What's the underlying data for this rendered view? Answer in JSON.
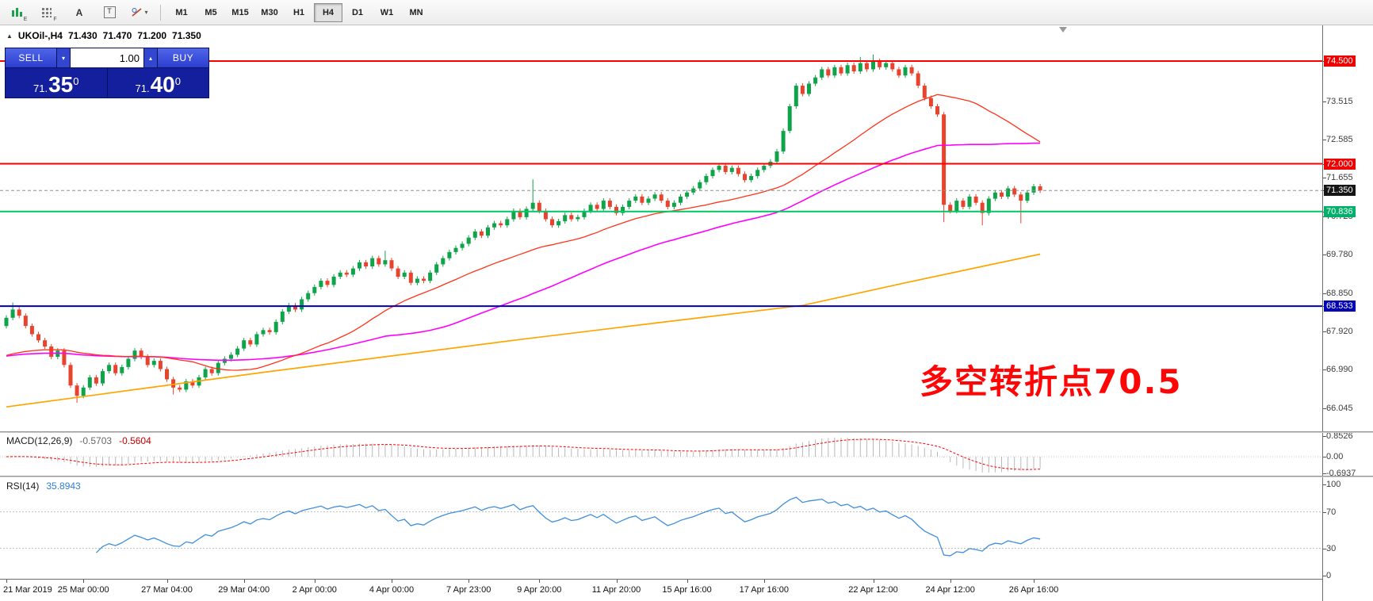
{
  "icons": {
    "collapse": "▲",
    "dropdown": "▾",
    "step_up": "▴"
  },
  "toolbar": {
    "chart_tool_label": "E",
    "indicator_tool_label": "F",
    "letter_a": "A",
    "letter_t": "T",
    "timeframes": [
      "M1",
      "M5",
      "M15",
      "M30",
      "H1",
      "H4",
      "D1",
      "W1",
      "MN"
    ],
    "active_timeframe": "H4"
  },
  "symbol_line": {
    "symbol": "UKOil-,H4",
    "open": "71.430",
    "high": "71.470",
    "low": "71.200",
    "close": "71.350"
  },
  "one_click": {
    "sell_label": "SELL",
    "buy_label": "BUY",
    "volume": "1.00",
    "bid": {
      "prefix": "71.",
      "big": "35",
      "sup": "0"
    },
    "ask": {
      "prefix": "71.",
      "big": "40",
      "sup": "0"
    }
  },
  "annotation": {
    "text": "多空转折点70.5",
    "color": "#fe0606"
  },
  "chart_data": {
    "type": "candlestick",
    "title": "UKOil-,H4",
    "symbol": "UKOil-",
    "timeframe": "H4",
    "current_bar": {
      "open": 71.43,
      "high": 71.47,
      "low": 71.2,
      "close": 71.35
    },
    "ylim": [
      65.5,
      75.35
    ],
    "colors": {
      "up": "#0fa34a",
      "down": "#e8432d",
      "ma_fast": "#ff3319",
      "ma_mid": "#ff00ff",
      "ma_slow": "#ffa500",
      "badges": {
        "red": "#ee0000",
        "black": "#161616",
        "green": "#00b06a",
        "blue": "#0000b4"
      }
    },
    "price_axis_labels": [
      {
        "text": "74.500",
        "value": 74.5,
        "style": "red"
      },
      {
        "text": "73.515",
        "value": 73.515,
        "style": "plain"
      },
      {
        "text": "72.585",
        "value": 72.585,
        "style": "plain"
      },
      {
        "text": "72.000",
        "value": 72.0,
        "style": "red"
      },
      {
        "text": "71.655",
        "value": 71.655,
        "style": "plain"
      },
      {
        "text": "71.350",
        "value": 71.35,
        "style": "black"
      },
      {
        "text": "70.836",
        "value": 70.836,
        "style": "green"
      },
      {
        "text": "70.725",
        "value": 70.725,
        "style": "plain"
      },
      {
        "text": "69.780",
        "value": 69.78,
        "style": "plain"
      },
      {
        "text": "68.850",
        "value": 68.85,
        "style": "plain"
      },
      {
        "text": "68.533",
        "value": 68.533,
        "style": "blue"
      },
      {
        "text": "67.920",
        "value": 67.92,
        "style": "plain"
      },
      {
        "text": "66.990",
        "value": 66.99,
        "style": "plain"
      },
      {
        "text": "66.045",
        "value": 66.045,
        "style": "plain"
      }
    ],
    "levels": [
      {
        "name": "resistance-74.500",
        "price": 74.5,
        "color": "#ff0000",
        "width": 2
      },
      {
        "name": "resistance-72.000",
        "price": 72.0,
        "color": "#ff0000",
        "width": 2
      },
      {
        "name": "support-70.836",
        "price": 70.836,
        "color": "#00c864",
        "width": 2
      },
      {
        "name": "support-68.533",
        "price": 68.533,
        "color": "#0000b4",
        "width": 2
      },
      {
        "name": "current-price-line",
        "price": 71.35,
        "color": "#909090",
        "width": 1,
        "dash": "4 3"
      }
    ],
    "x_labels": [
      {
        "text": "21 Mar 2019",
        "i": 0
      },
      {
        "text": "25 Mar 00:00",
        "i": 12
      },
      {
        "text": "27 Mar 04:00",
        "i": 25
      },
      {
        "text": "29 Mar 04:00",
        "i": 37
      },
      {
        "text": "2 Apr 00:00",
        "i": 48
      },
      {
        "text": "4 Apr 00:00",
        "i": 60
      },
      {
        "text": "7 Apr 23:00",
        "i": 72
      },
      {
        "text": "9 Apr 20:00",
        "i": 83
      },
      {
        "text": "11 Apr 20:00",
        "i": 95
      },
      {
        "text": "15 Apr 16:00",
        "i": 106
      },
      {
        "text": "17 Apr 16:00",
        "i": 118
      },
      {
        "text": "22 Apr 12:00",
        "i": 135
      },
      {
        "text": "24 Apr 12:00",
        "i": 147
      },
      {
        "text": "26 Apr 16:00",
        "i": 160
      }
    ],
    "candles": {
      "first_open": 68.05,
      "default_wick": 0.06,
      "closes": [
        68.25,
        68.45,
        68.3,
        68.05,
        67.85,
        67.7,
        67.55,
        67.3,
        67.45,
        67.1,
        66.6,
        66.35,
        66.55,
        66.8,
        66.65,
        66.95,
        67.1,
        66.9,
        67.05,
        67.25,
        67.45,
        67.3,
        67.1,
        67.2,
        67.0,
        66.75,
        66.55,
        66.5,
        66.7,
        66.6,
        66.8,
        67.0,
        66.9,
        67.15,
        67.25,
        67.35,
        67.5,
        67.7,
        67.6,
        67.85,
        67.95,
        67.9,
        68.15,
        68.4,
        68.55,
        68.45,
        68.7,
        68.85,
        69.0,
        69.15,
        69.05,
        69.25,
        69.35,
        69.3,
        69.45,
        69.6,
        69.5,
        69.7,
        69.55,
        69.65,
        69.45,
        69.25,
        69.35,
        69.1,
        69.2,
        69.15,
        69.35,
        69.55,
        69.7,
        69.85,
        69.95,
        70.05,
        70.2,
        70.35,
        70.25,
        70.45,
        70.55,
        70.5,
        70.65,
        70.85,
        70.7,
        70.9,
        71.05,
        70.85,
        70.65,
        70.5,
        70.6,
        70.75,
        70.65,
        70.7,
        70.85,
        71.0,
        70.9,
        71.1,
        70.95,
        70.8,
        70.95,
        71.1,
        71.2,
        71.05,
        71.15,
        71.25,
        71.1,
        70.95,
        71.05,
        71.2,
        71.3,
        71.4,
        71.55,
        71.7,
        71.85,
        71.95,
        71.8,
        71.9,
        71.75,
        71.6,
        71.7,
        71.85,
        71.95,
        72.05,
        72.3,
        72.8,
        73.4,
        73.9,
        73.7,
        73.95,
        74.1,
        74.3,
        74.15,
        74.35,
        74.2,
        74.4,
        74.25,
        74.45,
        74.3,
        74.5,
        74.35,
        74.45,
        74.3,
        74.15,
        74.35,
        74.2,
        73.9,
        73.6,
        73.4,
        73.2,
        71.0,
        70.85,
        71.1,
        70.95,
        71.2,
        71.05,
        70.8,
        71.15,
        71.3,
        71.2,
        71.4,
        71.25,
        71.1,
        71.3,
        71.45,
        71.35
      ],
      "wick_overrides": {
        "1": {
          "h": 68.62
        },
        "11": {
          "l": 66.18
        },
        "26": {
          "l": 66.38
        },
        "59": {
          "h": 69.88
        },
        "82": {
          "h": 71.62
        },
        "133": {
          "h": 74.6
        },
        "135": {
          "h": 74.66
        },
        "146": {
          "l": 70.58
        },
        "152": {
          "l": 70.5
        },
        "158": {
          "l": 70.55
        }
      }
    },
    "moving_averages": {
      "fast_sma_period": 30,
      "mid_sma_period": 60,
      "pre_history_price": 67.3,
      "slow_points": [
        [
          0,
          66.08
        ],
        [
          20,
          66.5
        ],
        [
          40,
          66.92
        ],
        [
          60,
          67.32
        ],
        [
          80,
          67.72
        ],
        [
          100,
          68.1
        ],
        [
          124,
          68.55
        ],
        [
          140,
          69.1
        ],
        [
          152,
          69.5
        ],
        [
          161,
          69.8
        ]
      ]
    },
    "macd": {
      "label": "MACD(12,26,9)",
      "main_value": "-0.5703",
      "signal_value": "-0.5604",
      "fast": 12,
      "slow": 26,
      "signal": 9,
      "histogram_color": "#b8b8b8",
      "signal_color": "#ff0000",
      "axis": [
        {
          "text": "0.8526",
          "value": 0.8526
        },
        {
          "text": "0.00",
          "value": 0
        },
        {
          "text": "-0.6937",
          "value": -0.6937
        }
      ]
    },
    "rsi": {
      "label": "RSI(14)",
      "value": "35.8943",
      "period": 14,
      "line_color": "#3f8edc",
      "axis": [
        {
          "text": "100",
          "value": 100
        },
        {
          "text": "70",
          "value": 70
        },
        {
          "text": "30",
          "value": 30
        },
        {
          "text": "0",
          "value": 0
        }
      ],
      "dashed_levels": [
        70,
        30
      ]
    }
  }
}
